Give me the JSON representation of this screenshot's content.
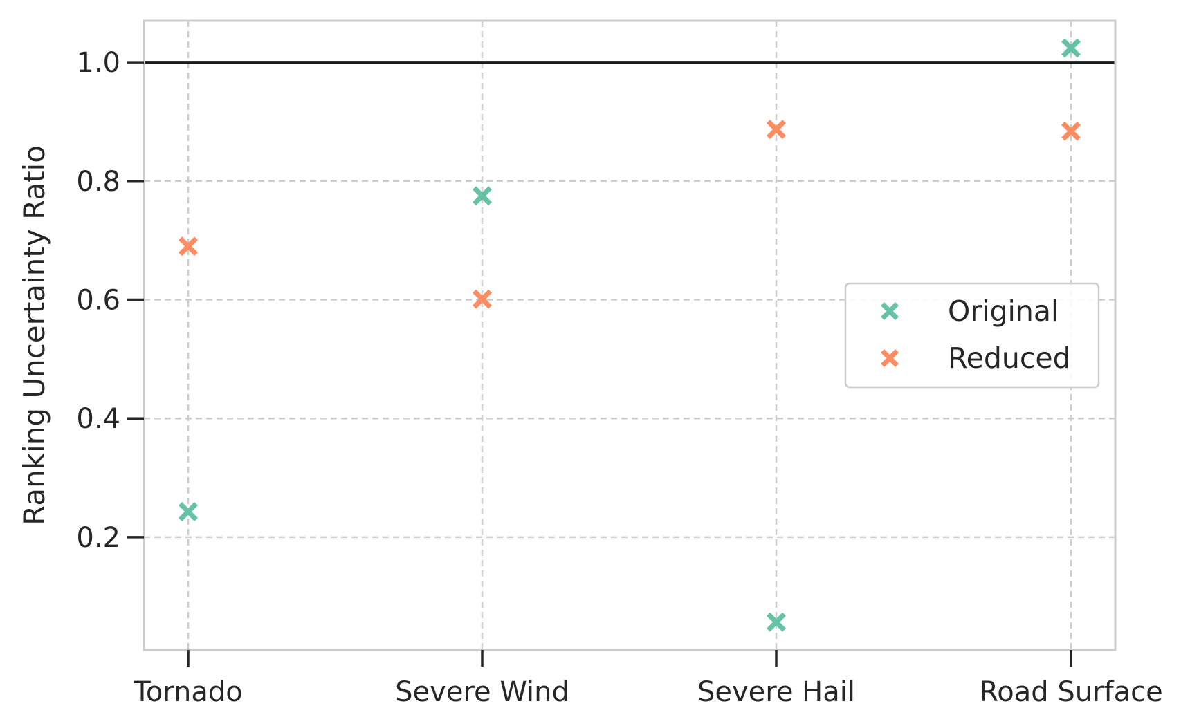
{
  "chart_data": {
    "type": "scatter",
    "categories": [
      "Tornado",
      "Severe Wind",
      "Severe Hail",
      "Road Surface"
    ],
    "series": [
      {
        "name": "Original",
        "color": "#66c2a5",
        "marker": "x-filled",
        "values": [
          0.243,
          0.775,
          0.057,
          1.024
        ]
      },
      {
        "name": "Reduced",
        "color": "#fc8d62",
        "marker": "x-filled",
        "values": [
          0.69,
          0.601,
          0.887,
          0.884
        ]
      }
    ],
    "title": "",
    "xlabel": "",
    "ylabel": "Ranking Uncertainty Ratio",
    "ylim": [
      0.01,
      1.07
    ],
    "yticks": [
      0.2,
      0.4,
      0.6,
      0.8,
      1.0
    ],
    "ytick_labels": [
      "0.2",
      "0.4",
      "0.6",
      "0.8",
      "1.0"
    ],
    "reference_line": {
      "y": 1.0,
      "color": "#1a1a1a"
    },
    "grid": true,
    "grid_style": "dashed",
    "legend_position": "center-right"
  }
}
